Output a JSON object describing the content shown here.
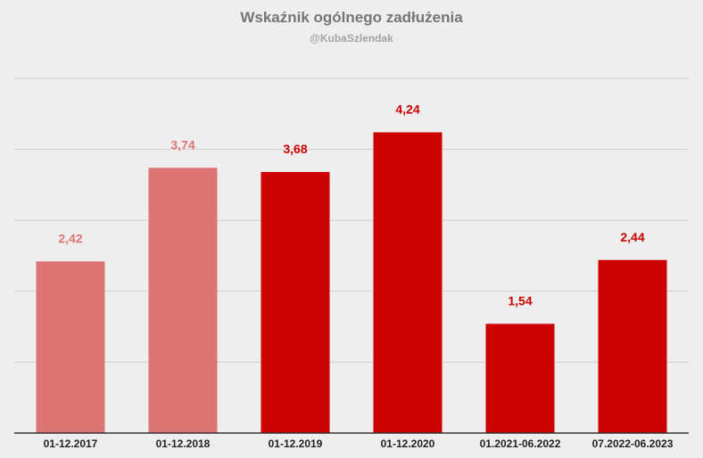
{
  "chart_data": {
    "type": "bar",
    "title": "Wskaźnik ogólnego zadłużenia",
    "subtitle": "@KubaSzlendak",
    "xlabel": "",
    "ylabel": "",
    "categories": [
      "01-12.2017",
      "01-12.2018",
      "01-12.2019",
      "01-12.2020",
      "01.2021-06.2022",
      "07.2022-06.2023"
    ],
    "values": [
      2.42,
      3.74,
      3.68,
      4.24,
      1.54,
      2.44
    ],
    "value_labels": [
      "2,42",
      "3,74",
      "3,68",
      "4,24",
      "1,54",
      "2,44"
    ],
    "ylim": [
      0,
      5
    ],
    "grid": true,
    "legend": "none",
    "bar_colors": [
      "#de7575",
      "#de7575",
      "#cc0000",
      "#cc0000",
      "#cc0000",
      "#cc0000"
    ],
    "label_colors": [
      "#de7575",
      "#de7575",
      "#cc0000",
      "#cc0000",
      "#cc0000",
      "#cc0000"
    ]
  }
}
